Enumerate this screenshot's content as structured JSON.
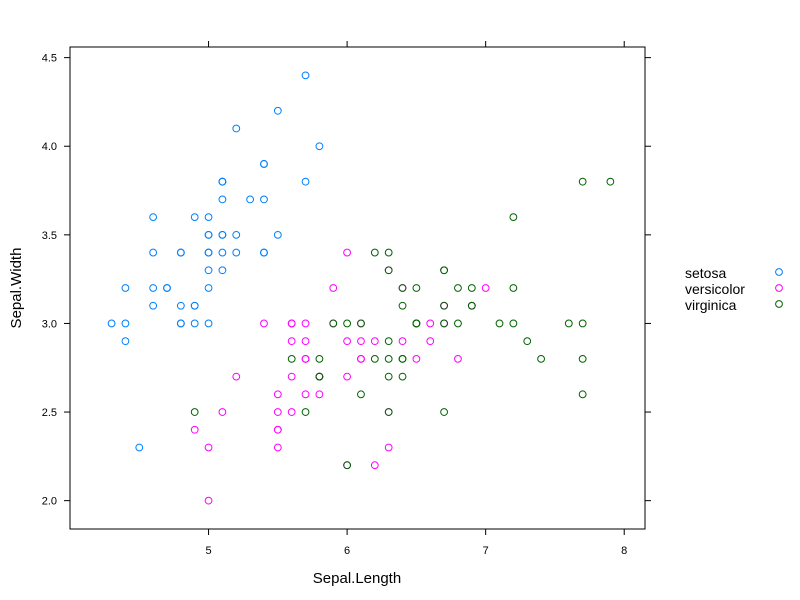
{
  "chart_data": {
    "type": "scatter",
    "title": "",
    "xlabel": "Sepal.Length",
    "ylabel": "Sepal.Width",
    "xlim": [
      4.0,
      8.15
    ],
    "ylim": [
      1.84,
      4.56
    ],
    "x_ticks": [
      5,
      6,
      7,
      8
    ],
    "y_ticks": [
      2.0,
      2.5,
      3.0,
      3.5,
      4.0,
      4.5
    ],
    "x_tick_labels": [
      "5",
      "6",
      "7",
      "8"
    ],
    "y_tick_labels": [
      "2.0",
      "2.5",
      "3.0",
      "3.5",
      "4.0",
      "4.5"
    ],
    "grid": false,
    "legend_position": "right",
    "series": [
      {
        "name": "setosa",
        "color": "#0080ff",
        "x": [
          5.1,
          4.9,
          4.7,
          4.6,
          5.0,
          5.4,
          4.6,
          5.0,
          4.4,
          4.9,
          5.4,
          4.8,
          4.8,
          4.3,
          5.8,
          5.7,
          5.4,
          5.1,
          5.7,
          5.1,
          5.4,
          5.1,
          4.6,
          5.1,
          4.8,
          5.0,
          5.0,
          5.2,
          5.2,
          4.7,
          4.8,
          5.4,
          5.2,
          5.5,
          4.9,
          5.0,
          5.5,
          4.9,
          4.4,
          5.1,
          5.0,
          4.5,
          4.4,
          5.0,
          5.1,
          4.8,
          5.1,
          4.6,
          5.3,
          5.0
        ],
        "y": [
          3.5,
          3.0,
          3.2,
          3.1,
          3.6,
          3.9,
          3.4,
          3.4,
          2.9,
          3.1,
          3.7,
          3.4,
          3.0,
          3.0,
          4.0,
          4.4,
          3.9,
          3.5,
          3.8,
          3.8,
          3.4,
          3.7,
          3.6,
          3.3,
          3.4,
          3.0,
          3.4,
          3.5,
          3.4,
          3.2,
          3.1,
          3.4,
          4.1,
          4.2,
          3.1,
          3.2,
          3.5,
          3.6,
          3.0,
          3.4,
          3.5,
          2.3,
          3.2,
          3.5,
          3.8,
          3.0,
          3.8,
          3.2,
          3.7,
          3.3
        ]
      },
      {
        "name": "versicolor",
        "color": "#ff00ff",
        "x": [
          7.0,
          6.4,
          6.9,
          5.5,
          6.5,
          5.7,
          6.3,
          4.9,
          6.6,
          5.2,
          5.0,
          5.9,
          6.0,
          6.1,
          5.6,
          6.7,
          5.6,
          5.8,
          6.2,
          5.6,
          5.9,
          6.1,
          6.3,
          6.1,
          6.4,
          6.6,
          6.8,
          6.7,
          6.0,
          5.7,
          5.5,
          5.5,
          5.8,
          6.0,
          5.4,
          6.0,
          6.7,
          6.3,
          5.6,
          5.5,
          5.5,
          6.1,
          5.8,
          5.0,
          5.6,
          5.7,
          5.7,
          6.2,
          5.1,
          5.7
        ],
        "y": [
          3.2,
          3.2,
          3.1,
          2.3,
          2.8,
          2.8,
          3.3,
          2.4,
          2.9,
          2.7,
          2.0,
          3.0,
          2.2,
          2.9,
          2.9,
          3.1,
          3.0,
          2.7,
          2.2,
          2.5,
          3.2,
          2.8,
          2.5,
          2.8,
          2.9,
          3.0,
          2.8,
          3.0,
          2.9,
          2.6,
          2.4,
          2.4,
          2.7,
          2.7,
          3.0,
          3.4,
          3.1,
          2.3,
          3.0,
          2.5,
          2.6,
          3.0,
          2.6,
          2.3,
          2.7,
          3.0,
          2.9,
          2.9,
          2.5,
          2.8
        ]
      },
      {
        "name": "virginica",
        "color": "#006400",
        "x": [
          6.3,
          5.8,
          7.1,
          6.3,
          6.5,
          7.6,
          4.9,
          7.3,
          6.7,
          7.2,
          6.5,
          6.4,
          6.8,
          5.7,
          5.8,
          6.4,
          6.5,
          7.7,
          7.7,
          6.0,
          6.9,
          5.6,
          7.7,
          6.3,
          6.7,
          7.2,
          6.2,
          6.1,
          6.4,
          7.2,
          7.4,
          7.9,
          6.4,
          6.3,
          6.1,
          7.7,
          6.3,
          6.4,
          6.0,
          6.9,
          6.7,
          6.9,
          5.8,
          6.8,
          6.7,
          6.7,
          6.3,
          6.5,
          6.2,
          5.9
        ],
        "y": [
          3.3,
          2.7,
          3.0,
          2.9,
          3.0,
          3.0,
          2.5,
          2.9,
          2.5,
          3.6,
          3.2,
          2.7,
          3.0,
          2.5,
          2.8,
          3.2,
          3.0,
          3.8,
          2.6,
          2.2,
          3.2,
          2.8,
          2.8,
          2.7,
          3.3,
          3.2,
          2.8,
          3.0,
          2.8,
          3.0,
          2.8,
          3.8,
          2.8,
          2.8,
          2.6,
          3.0,
          3.4,
          3.1,
          3.0,
          3.1,
          3.1,
          3.1,
          2.7,
          3.2,
          3.3,
          3.0,
          2.5,
          3.0,
          3.4,
          3.0
        ]
      }
    ]
  }
}
